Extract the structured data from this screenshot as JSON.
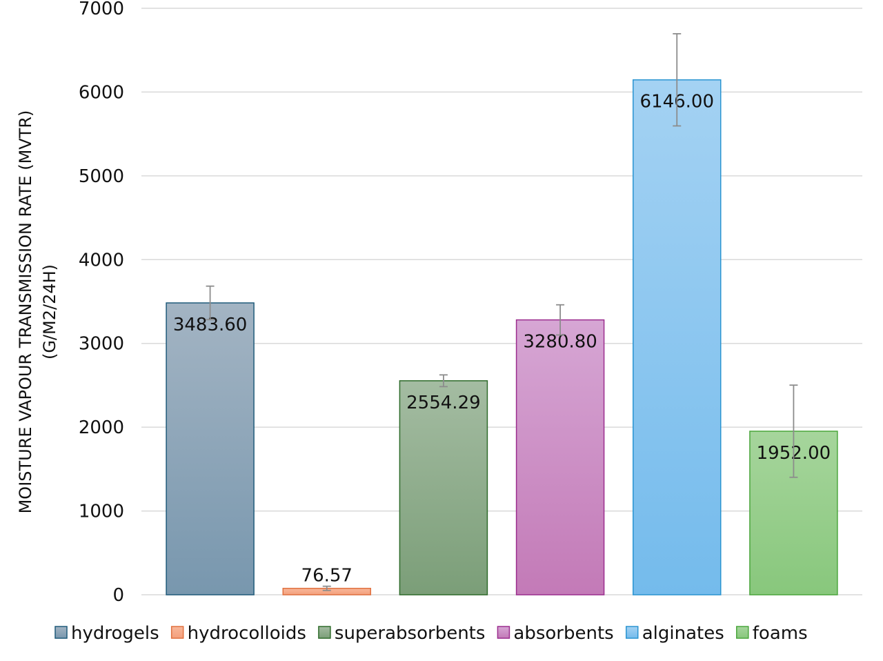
{
  "chart_data": {
    "type": "bar",
    "title": "",
    "xlabel": "",
    "ylabel_lines": [
      "MOISTURE VAPOUR TRANSMISSION RATE (MVTR)",
      "(G/M2/24H)"
    ],
    "ylim": [
      0,
      7000
    ],
    "yticks": [
      0,
      1000,
      2000,
      3000,
      4000,
      5000,
      6000,
      7000
    ],
    "grid": true,
    "legend_position": "bottom",
    "categories": [
      "hydrogels",
      "hydrocolloids",
      "superabsorbents",
      "absorbents",
      "alginates",
      "foams"
    ],
    "values": [
      3483.6,
      76.57,
      2554.29,
      3280.8,
      6146.0,
      1952.0
    ],
    "labels": [
      "3483.60",
      "76.57",
      "2554.29",
      "3280.80",
      "6146.00",
      "1952.00"
    ],
    "error": [
      200,
      25,
      70,
      180,
      550,
      550
    ],
    "colors": [
      {
        "top": "#a3b4c3",
        "bottom": "#7897ae",
        "stroke": "#1f5a7a"
      },
      {
        "top": "#f8b79a",
        "bottom": "#f4a07c",
        "stroke": "#e0703f"
      },
      {
        "top": "#a4bca2",
        "bottom": "#7b9e78",
        "stroke": "#2e6b2a"
      },
      {
        "top": "#d6a6d4",
        "bottom": "#c37ab7",
        "stroke": "#9b2d8e"
      },
      {
        "top": "#a4d2f3",
        "bottom": "#74bbec",
        "stroke": "#2a94d1"
      },
      {
        "top": "#a6d59c",
        "bottom": "#88c77c",
        "stroke": "#4aa63c"
      }
    ],
    "gridline_color": "#d9d9d9",
    "errorbar_color": "#8c8c8c"
  }
}
